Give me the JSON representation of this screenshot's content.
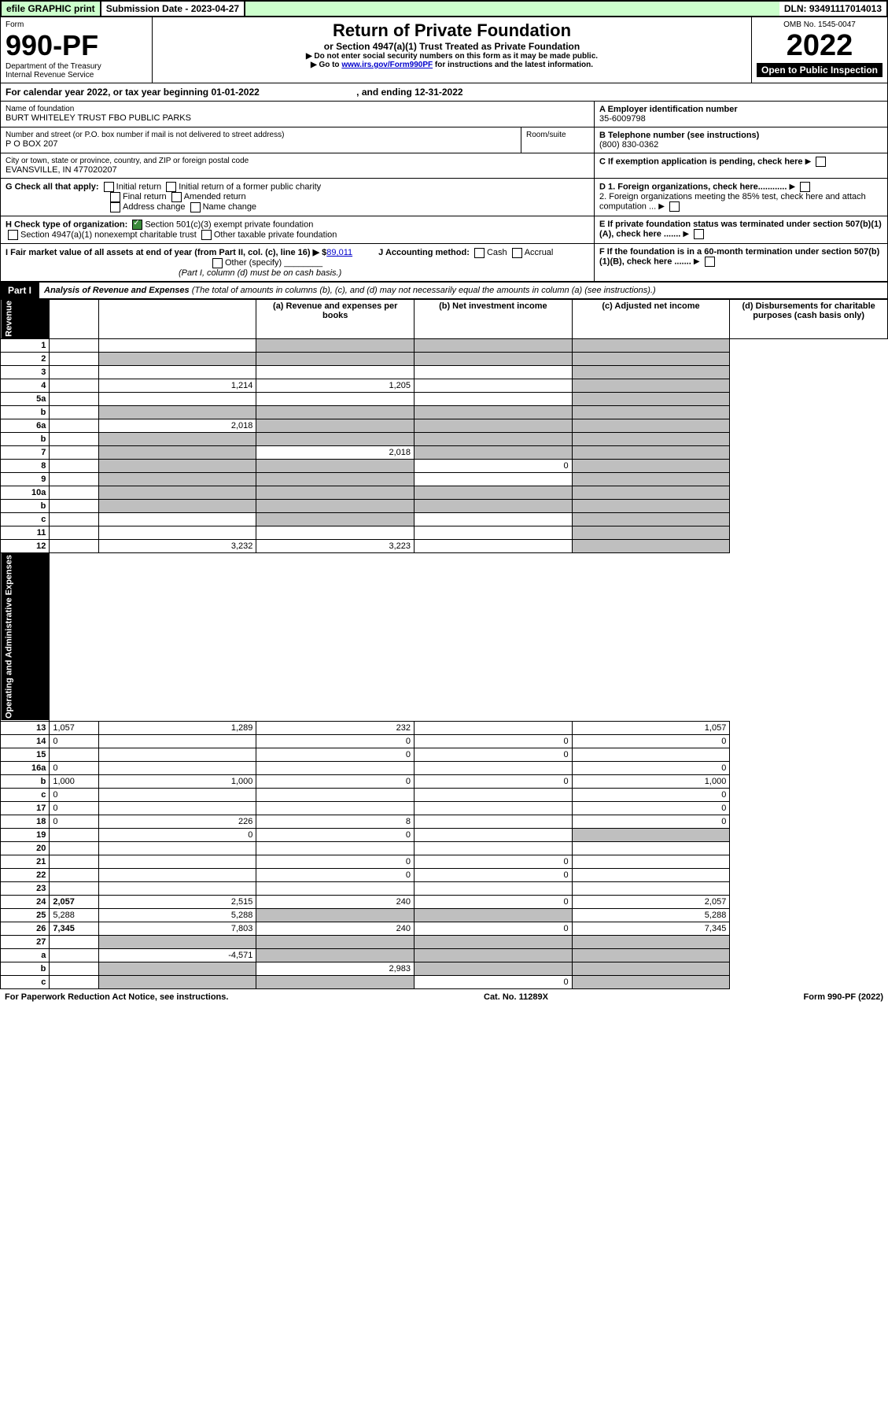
{
  "top": {
    "efile": "efile GRAPHIC print",
    "subdate_label": "Submission Date - 2023-04-27",
    "dln": "DLN: 93491117014013"
  },
  "header": {
    "form_label": "Form",
    "form_no": "990-PF",
    "dept": "Department of the Treasury",
    "irs": "Internal Revenue Service",
    "title": "Return of Private Foundation",
    "subtitle": "or Section 4947(a)(1) Trust Treated as Private Foundation",
    "note1": "▶ Do not enter social security numbers on this form as it may be made public.",
    "note2": "▶ Go to ",
    "link": "www.irs.gov/Form990PF",
    "note2b": " for instructions and the latest information.",
    "omb": "OMB No. 1545-0047",
    "year": "2022",
    "inspection": "Open to Public Inspection"
  },
  "calyear": {
    "text": "For calendar year 2022, or tax year beginning 01-01-2022",
    "end": ", and ending 12-31-2022"
  },
  "info": {
    "name_label": "Name of foundation",
    "name": "BURT WHITELEY TRUST FBO PUBLIC PARKS",
    "addr_label": "Number and street (or P.O. box number if mail is not delivered to street address)",
    "addr": "P O BOX 207",
    "room_label": "Room/suite",
    "city_label": "City or town, state or province, country, and ZIP or foreign postal code",
    "city": "EVANSVILLE, IN  477020207",
    "a_label": "A Employer identification number",
    "a_val": "35-6009798",
    "b_label": "B Telephone number (see instructions)",
    "b_val": "(800) 830-0362",
    "c_label": "C If exemption application is pending, check here"
  },
  "checks": {
    "g_label": "G Check all that apply:",
    "g_opts": [
      "Initial return",
      "Initial return of a former public charity",
      "Final return",
      "Amended return",
      "Address change",
      "Name change"
    ],
    "h_label": "H Check type of organization:",
    "h_opt1": "Section 501(c)(3) exempt private foundation",
    "h_opt2": "Section 4947(a)(1) nonexempt charitable trust",
    "h_opt3": "Other taxable private foundation",
    "i_label": "I Fair market value of all assets at end of year (from Part II, col. (c), line 16) ▶ $",
    "i_val": "89,011",
    "j_label": "J Accounting method:",
    "j_opts": [
      "Cash",
      "Accrual",
      "Other (specify)"
    ],
    "j_note": "(Part I, column (d) must be on cash basis.)",
    "d1": "D 1. Foreign organizations, check here............",
    "d2": "2. Foreign organizations meeting the 85% test, check here and attach computation ...",
    "e": "E If private foundation status was terminated under section 507(b)(1)(A), check here .......",
    "f": "F If the foundation is in a 60-month termination under section 507(b)(1)(B), check here ......."
  },
  "part1": {
    "label": "Part I",
    "title": "Analysis of Revenue and Expenses",
    "note": " (The total of amounts in columns (b), (c), and (d) may not necessarily equal the amounts in column (a) (see instructions).)",
    "col_a": "(a)  Revenue and expenses per books",
    "col_b": "(b)  Net investment income",
    "col_c": "(c)  Adjusted net income",
    "col_d": "(d)  Disbursements for charitable purposes (cash basis only)"
  },
  "side": {
    "revenue": "Revenue",
    "expenses": "Operating and Administrative Expenses"
  },
  "rows": [
    {
      "n": "1",
      "d": "",
      "a": "",
      "b": "",
      "c": "",
      "sh": [
        false,
        true,
        true,
        true
      ]
    },
    {
      "n": "2",
      "d": "",
      "a": "",
      "b": "",
      "c": "",
      "sh": [
        true,
        true,
        true,
        true
      ]
    },
    {
      "n": "3",
      "d": "",
      "a": "",
      "b": "",
      "c": "",
      "sh": [
        false,
        false,
        false,
        true
      ]
    },
    {
      "n": "4",
      "d": "",
      "a": "1,214",
      "b": "1,205",
      "c": "",
      "sh": [
        false,
        false,
        false,
        true
      ]
    },
    {
      "n": "5a",
      "d": "",
      "a": "",
      "b": "",
      "c": "",
      "sh": [
        false,
        false,
        false,
        true
      ]
    },
    {
      "n": "b",
      "d": "",
      "a": "",
      "b": "",
      "c": "",
      "sh": [
        true,
        true,
        true,
        true
      ]
    },
    {
      "n": "6a",
      "d": "",
      "a": "2,018",
      "b": "",
      "c": "",
      "sh": [
        false,
        true,
        true,
        true
      ]
    },
    {
      "n": "b",
      "d": "",
      "a": "",
      "b": "",
      "c": "",
      "sh": [
        true,
        true,
        true,
        true
      ]
    },
    {
      "n": "7",
      "d": "",
      "a": "",
      "b": "2,018",
      "c": "",
      "sh": [
        true,
        false,
        true,
        true
      ]
    },
    {
      "n": "8",
      "d": "",
      "a": "",
      "b": "",
      "c": "0",
      "sh": [
        true,
        true,
        false,
        true
      ]
    },
    {
      "n": "9",
      "d": "",
      "a": "",
      "b": "",
      "c": "",
      "sh": [
        true,
        true,
        false,
        true
      ]
    },
    {
      "n": "10a",
      "d": "",
      "a": "",
      "b": "",
      "c": "",
      "sh": [
        true,
        true,
        true,
        true
      ]
    },
    {
      "n": "b",
      "d": "",
      "a": "",
      "b": "",
      "c": "",
      "sh": [
        true,
        true,
        true,
        true
      ]
    },
    {
      "n": "c",
      "d": "",
      "a": "",
      "b": "",
      "c": "",
      "sh": [
        false,
        true,
        false,
        true
      ]
    },
    {
      "n": "11",
      "d": "",
      "a": "",
      "b": "",
      "c": "",
      "sh": [
        false,
        false,
        false,
        true
      ]
    },
    {
      "n": "12",
      "d": "",
      "a": "3,232",
      "b": "3,223",
      "c": "",
      "sh": [
        false,
        false,
        false,
        true
      ],
      "bold": true
    }
  ],
  "exp_rows": [
    {
      "n": "13",
      "d": "1,057",
      "a": "1,289",
      "b": "232",
      "c": ""
    },
    {
      "n": "14",
      "d": "0",
      "a": "",
      "b": "0",
      "c": "0"
    },
    {
      "n": "15",
      "d": "",
      "a": "",
      "b": "0",
      "c": "0"
    },
    {
      "n": "16a",
      "d": "0",
      "a": "",
      "b": "",
      "c": ""
    },
    {
      "n": "b",
      "d": "1,000",
      "a": "1,000",
      "b": "0",
      "c": "0"
    },
    {
      "n": "c",
      "d": "0",
      "a": "",
      "b": "",
      "c": ""
    },
    {
      "n": "17",
      "d": "0",
      "a": "",
      "b": "",
      "c": ""
    },
    {
      "n": "18",
      "d": "0",
      "a": "226",
      "b": "8",
      "c": ""
    },
    {
      "n": "19",
      "d": "",
      "a": "0",
      "b": "0",
      "c": "",
      "sh_d": true
    },
    {
      "n": "20",
      "d": "",
      "a": "",
      "b": "",
      "c": ""
    },
    {
      "n": "21",
      "d": "",
      "a": "",
      "b": "0",
      "c": "0"
    },
    {
      "n": "22",
      "d": "",
      "a": "",
      "b": "0",
      "c": "0"
    },
    {
      "n": "23",
      "d": "",
      "a": "",
      "b": "",
      "c": ""
    },
    {
      "n": "24",
      "d": "2,057",
      "a": "2,515",
      "b": "240",
      "c": "0",
      "bold": true
    },
    {
      "n": "25",
      "d": "5,288",
      "a": "5,288",
      "b": "",
      "c": "",
      "sh_b": true,
      "sh_c": true
    },
    {
      "n": "26",
      "d": "7,345",
      "a": "7,803",
      "b": "240",
      "c": "0",
      "bold": true
    },
    {
      "n": "27",
      "d": "",
      "a": "",
      "b": "",
      "c": "",
      "sh_all": true
    },
    {
      "n": "a",
      "d": "",
      "a": "-4,571",
      "b": "",
      "c": "",
      "bold": true,
      "sh_b": true,
      "sh_c": true,
      "sh_d": true
    },
    {
      "n": "b",
      "d": "",
      "a": "",
      "b": "2,983",
      "c": "",
      "bold": true,
      "sh_a": true,
      "sh_c": true,
      "sh_d": true
    },
    {
      "n": "c",
      "d": "",
      "a": "",
      "b": "",
      "c": "0",
      "bold": true,
      "sh_a": true,
      "sh_b": true,
      "sh_d": true
    }
  ],
  "footer": {
    "left": "For Paperwork Reduction Act Notice, see instructions.",
    "mid": "Cat. No. 11289X",
    "right": "Form 990-PF (2022)"
  }
}
